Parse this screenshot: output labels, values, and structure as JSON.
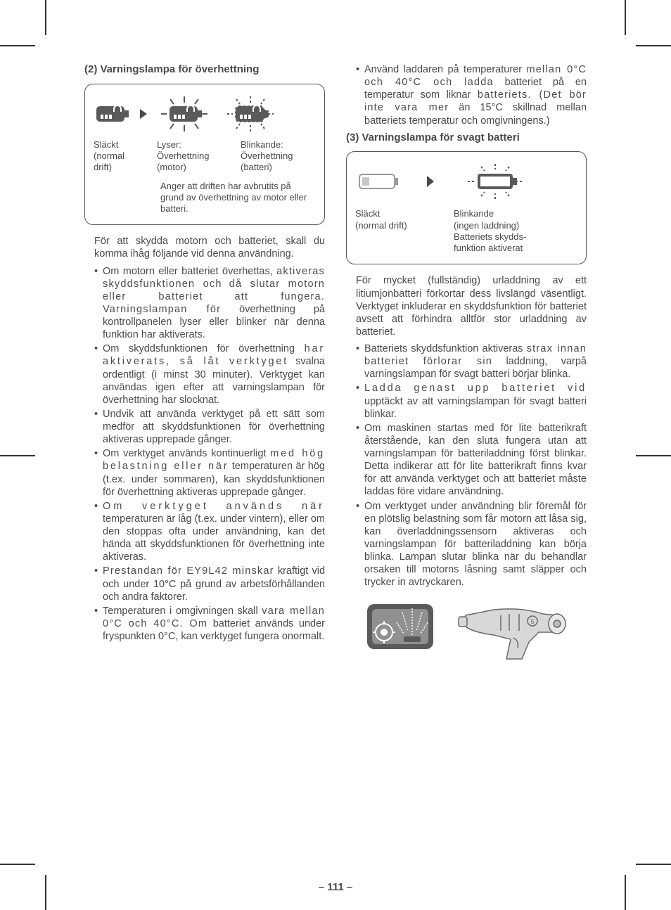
{
  "left": {
    "h2": "(2) Varningslampa för överhettning",
    "box": {
      "labels": [
        [
          "Släckt",
          "(normal",
          "drift)"
        ],
        [
          "Lyser:",
          "Överhettning",
          "(motor)"
        ],
        [
          "Blinkande:",
          "Överhettning",
          "(batteri)"
        ]
      ],
      "note": "Anger att driften har avbrutits på grund av överhettning av motor eller batteri."
    },
    "intro": "För att skydda motorn och batteriet, skall du komma ihåg följande vid denna användning.",
    "bullets": [
      "Om motorn eller batteriet överhettas, <span class='spaced'>aktiveras skyddsfunktionen och</span> <span class='spaced'>då slutar motorn eller batteriet</span> <span class='spaced'>att fungera. Varningslampan för</span> överhettning på kontrollpanelen lyser eller blinker när denna funktion har aktiverats.",
      "Om skyddsfunktionen för överhettning <span class='spaced2'>har aktiverats, så låt verktyget</span> svalna ordentligt (i minst 30 minuter). Verktyget kan användas igen efter att varningslampan för överhettning har slocknat.",
      "Undvik att använda verktyget på ett sätt som medför att skyddsfunktionen för överhettning aktiveras upprepade gånger.",
      "Om verktyget används kontinuerligt <span class='spaced2'>med hög belastning eller när</span> temperaturen är hög (t.ex. under sommaren), kan skyddsfunktionen för överhettning aktiveras upprepade gånger.",
      "<span class='spaced3'>Om verktyget används när</span> temperaturen är låg (t.ex. under vintern), eller om den stoppas ofta under användning, kan det hända att skyddsfunktionen för överhettning inte aktiveras.",
      "<span class='spaced'>Prestandan för EY9L42 minskar</span> kraftigt vid och under 10°C på grund av arbetsförhållanden och andra faktorer.",
      "Temperaturen i omgivningen skall <span class='spaced'>vara mellan 0°C och 40°C. Om</span> batteriet används under fryspunkten 0°C, kan verktyget fungera onormalt."
    ]
  },
  "right": {
    "top_bullet": "Använd laddaren på temperaturer <span class='spaced'>mellan 0°C och 40°C och ladda</span> batteriet på en temperatur som liknar <span class='spaced'>batteriets. (Det bör inte vara mer</span> än 15°C skillnad mellan batteriets temperatur och omgivningens.)",
    "h3": "(3) Varningslampa för svagt batteri",
    "box": {
      "labels": [
        [
          "Släckt",
          "(normal drift)"
        ],
        [
          "Blinkande",
          "(ingen laddning)",
          "Batteriets skydds-",
          "funktion aktiverat"
        ]
      ]
    },
    "intro": "För mycket (fullständig) urladdning av ett litiumjonbatteri förkortar dess livslängd väsentligt. Verktyget inkluderar en skyddsfunktion för batteriet avsett att förhindra alltför stor urladdning av batteriet.",
    "bullets": [
      "Batteriets skyddsfunktion aktiveras <span class='spaced'>strax innan batteriet förlorar sin</span> laddning, varpå varningslampan för svagt batteri börjar blinka.",
      "<span class='spaced2'>Ladda genast upp batteriet vid</span> upptäckt av att varningslampan för svagt batteri blinkar.",
      "Om maskinen startas med för lite batterikraft återstående, kan den sluta fungera utan att varningslampan för batteriladdning först blinkar. Detta indikerar att för lite batterikraft finns kvar för att använda verktyget och att batteriet måste laddas före vidare användning.",
      "Om verktyget under användning blir föremål för en plötslig belastning som får motorn att låsa sig, kan överladdningssensorn aktiveras och varningslampan för batteriladdning kan börja blinka. Lampan slutar blinka när du behandlar orsaken till motorns låsning samt släpper och trycker in avtryckaren."
    ]
  },
  "page_num": "– 111 –",
  "colors": {
    "text": "#4a4a4a",
    "border": "#555555",
    "icon_dark": "#5a5a5a",
    "icon_light": "#dddddd"
  }
}
